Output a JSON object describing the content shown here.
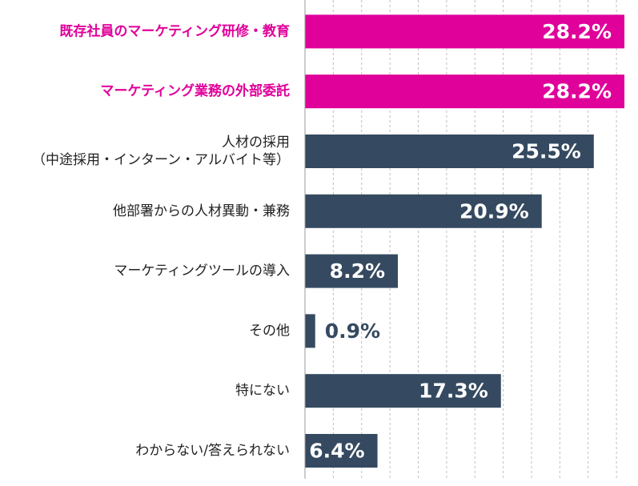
{
  "chart_data": {
    "type": "bar",
    "orientation": "horizontal",
    "categories": [
      [
        "既存社員のマーケティング研修・教育"
      ],
      [
        "マーケティング業務の外部委託"
      ],
      [
        "人材の採用",
        "（中途採用・インターン・アルバイト等）"
      ],
      [
        "他部署からの人材異動・兼務"
      ],
      [
        "マーケティングツールの導入"
      ],
      [
        "その他"
      ],
      [
        "特にない"
      ],
      [
        "わからない/答えられない"
      ]
    ],
    "values": [
      28.2,
      28.2,
      25.5,
      20.9,
      8.2,
      0.9,
      17.3,
      6.4
    ],
    "value_labels": [
      "28.2%",
      "28.2%",
      "25.5%",
      "20.9%",
      "8.2%",
      "0.9%",
      "17.3%",
      "6.4%"
    ],
    "highlighted": [
      true,
      true,
      false,
      false,
      false,
      false,
      false,
      false
    ],
    "colors": {
      "highlight": "#E0009A",
      "default": "#354A60",
      "label_default": "#222222",
      "value_on_bar": "#FFFFFF",
      "value_outside": "#354A60",
      "grid": "#BFBFBF",
      "axis": "#9A9A9A"
    },
    "xlim": [
      0,
      30
    ],
    "grid": true
  }
}
